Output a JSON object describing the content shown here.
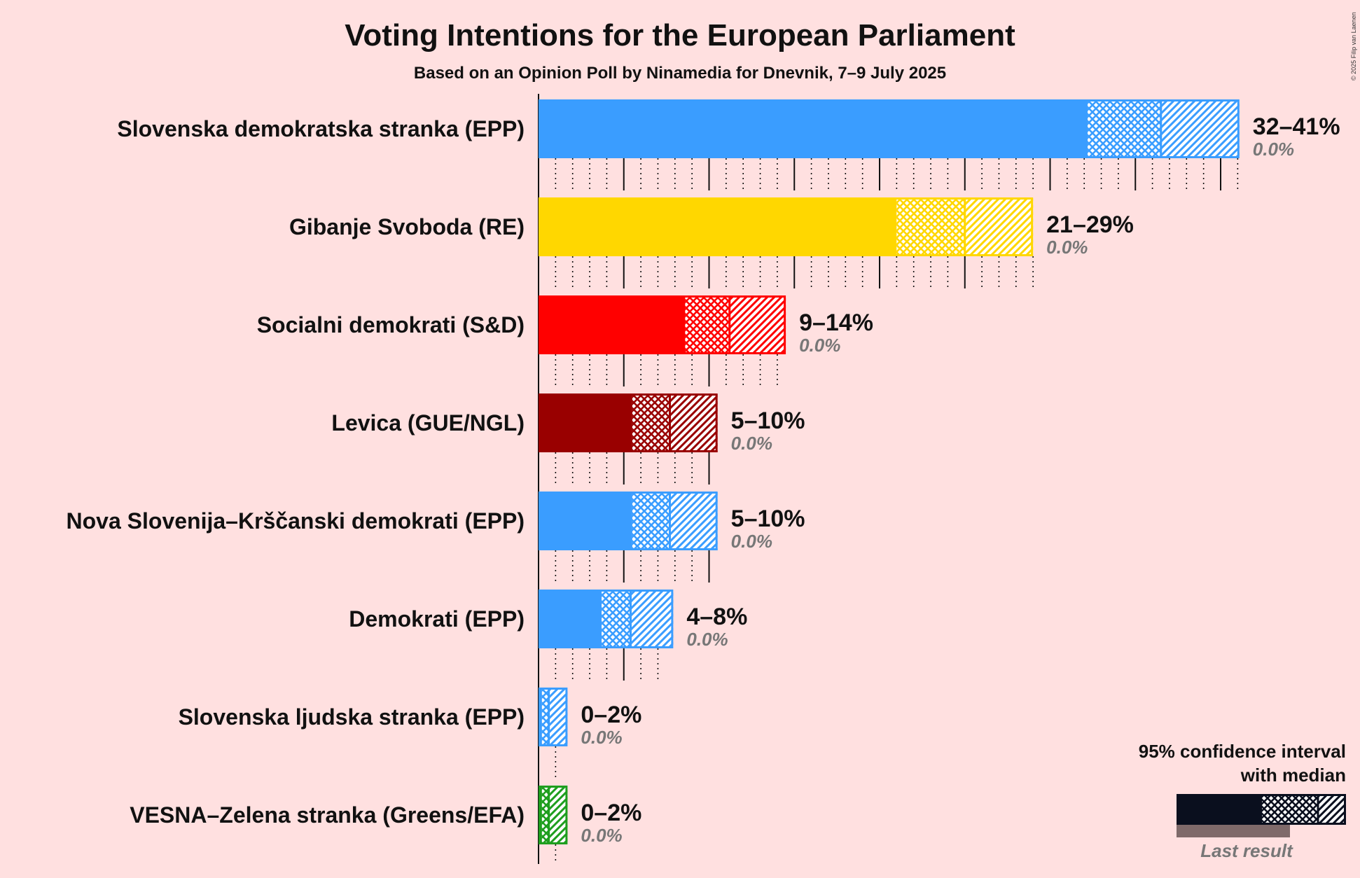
{
  "chart_data": {
    "type": "bar",
    "title": "Voting Intentions for the European Parliament",
    "subtitle": "Based on an Opinion Poll by Ninamedia for Dnevnik, 7–9 July 2025",
    "copyright": "© 2025 Filip van Laenen",
    "xlim": [
      0,
      41
    ],
    "series": [
      {
        "name": "Slovenska demokratska stranka (EPP)",
        "color": "#3A9DFF",
        "low": 32.2,
        "median": 36.5,
        "high": 41.1,
        "range_label": "32–41%",
        "last_result_label": "0.0%",
        "last_result": 0.0,
        "tick_max": 41
      },
      {
        "name": "Gibanje Svoboda (RE)",
        "color": "#FFD700",
        "low": 21.0,
        "median": 25.0,
        "high": 29.0,
        "range_label": "21–29%",
        "last_result_label": "0.0%",
        "last_result": 0.0,
        "tick_max": 29
      },
      {
        "name": "Socialni demokrati (S&D)",
        "color": "#FF0000",
        "low": 8.6,
        "median": 11.2,
        "high": 14.5,
        "range_label": "9–14%",
        "last_result_label": "0.0%",
        "last_result": 0.0,
        "tick_max": 14
      },
      {
        "name": "Levica (GUE/NGL)",
        "color": "#990000",
        "low": 5.5,
        "median": 7.7,
        "high": 10.5,
        "range_label": "5–10%",
        "last_result_label": "0.0%",
        "last_result": 0.0,
        "tick_max": 10
      },
      {
        "name": "Nova Slovenija–Krščanski demokrati (EPP)",
        "color": "#3A9DFF",
        "low": 5.5,
        "median": 7.7,
        "high": 10.5,
        "range_label": "5–10%",
        "last_result_label": "0.0%",
        "last_result": 0.0,
        "tick_max": 10
      },
      {
        "name": "Demokrati (EPP)",
        "color": "#3A9DFF",
        "low": 3.7,
        "median": 5.4,
        "high": 7.9,
        "range_label": "4–8%",
        "last_result_label": "0.0%",
        "last_result": 0.0,
        "tick_max": 7
      },
      {
        "name": "Slovenska ljudska stranka (EPP)",
        "color": "#3A9DFF",
        "low": 0.2,
        "median": 0.6,
        "high": 1.7,
        "range_label": "0–2%",
        "last_result_label": "0.0%",
        "last_result": 0.0,
        "tick_max": 1
      },
      {
        "name": "VESNA–Zelena stranka (Greens/EFA)",
        "color": "#1E9E1E",
        "low": 0.2,
        "median": 0.6,
        "high": 1.7,
        "range_label": "0–2%",
        "last_result_label": "0.0%",
        "last_result": 0.0,
        "tick_max": 1
      }
    ],
    "legend": {
      "line1": "95% confidence interval",
      "line2": "with median",
      "last_result": "Last result",
      "position": "bottom-right"
    }
  },
  "colors": {
    "background": "#FFE0E0",
    "legend_bar": "#0A0F1E",
    "legend_last": "#7F6A6A"
  }
}
